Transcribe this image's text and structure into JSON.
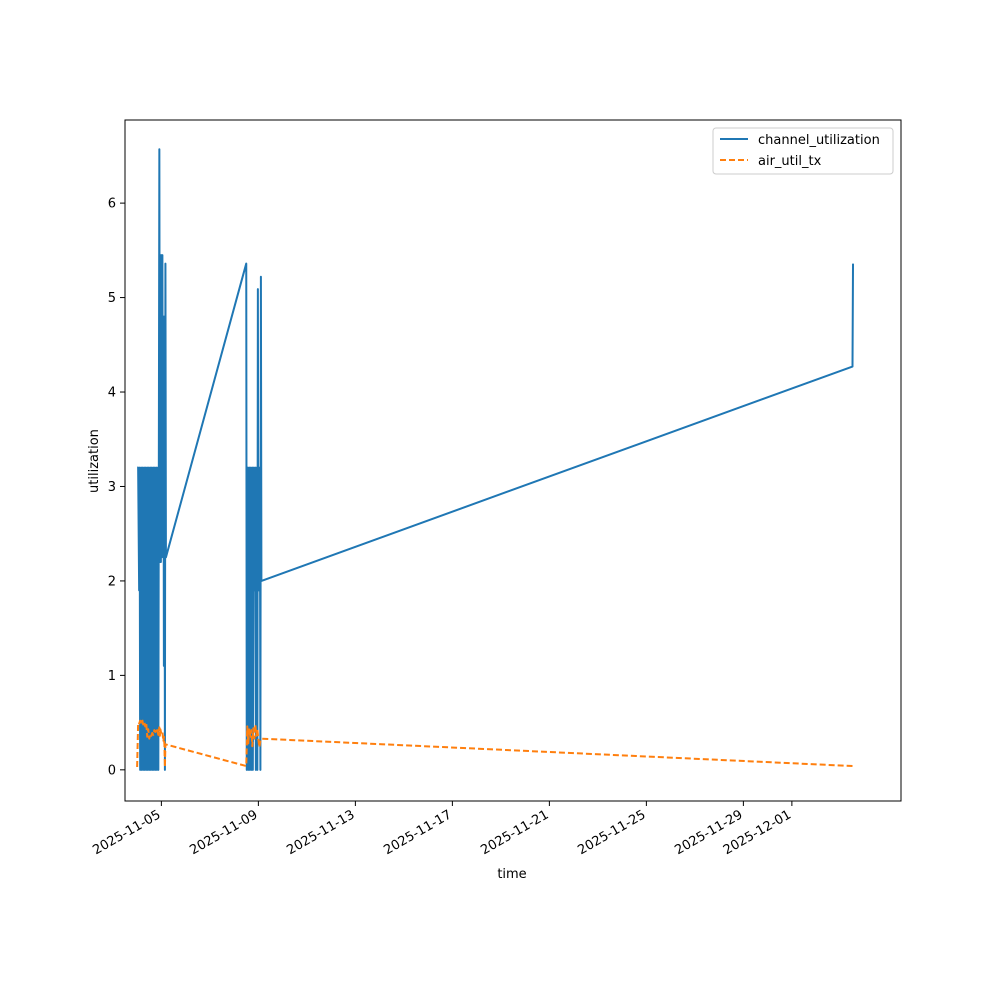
{
  "chart_data": {
    "type": "line",
    "title": "",
    "xlabel": "time",
    "ylabel": "utilization",
    "x_ticks": [
      "2025-11-05",
      "2025-11-09",
      "2025-11-13",
      "2025-11-17",
      "2025-11-21",
      "2025-11-25",
      "2025-11-29",
      "2025-12-01"
    ],
    "y_ticks": [
      0,
      1,
      2,
      3,
      4,
      5,
      6
    ],
    "xlim": [
      "2025-11-03T12:00",
      "2025-12-05T12:00"
    ],
    "ylim": [
      -0.33,
      6.88
    ],
    "legend": {
      "location": "top-right"
    },
    "grid": false,
    "series": [
      {
        "name": "channel_utilization",
        "color": "#1f77b4",
        "dash": "solid",
        "points": [
          [
            "2025-11-04T00:00",
            3.2
          ],
          [
            "2025-11-04T01:00",
            3.2
          ],
          [
            "2025-11-04T02:00",
            1.9
          ],
          [
            "2025-11-04T02:30",
            3.2
          ],
          [
            "2025-11-04T03:00",
            0
          ],
          [
            "2025-11-04T04:00",
            3.2
          ],
          [
            "2025-11-04T04:30",
            0
          ],
          [
            "2025-11-04T05:30",
            3.2
          ],
          [
            "2025-11-04T06:00",
            0
          ],
          [
            "2025-11-04T07:00",
            3.2
          ],
          [
            "2025-11-04T07:30",
            0
          ],
          [
            "2025-11-04T08:30",
            3.2
          ],
          [
            "2025-11-04T09:00",
            0
          ],
          [
            "2025-11-04T10:00",
            3.2
          ],
          [
            "2025-11-04T10:30",
            0
          ],
          [
            "2025-11-04T11:30",
            3.2
          ],
          [
            "2025-11-04T12:00",
            0
          ],
          [
            "2025-11-04T13:00",
            3.2
          ],
          [
            "2025-11-04T13:30",
            0
          ],
          [
            "2025-11-04T14:30",
            3.2
          ],
          [
            "2025-11-04T15:00",
            0
          ],
          [
            "2025-11-04T16:00",
            3.2
          ],
          [
            "2025-11-04T16:30",
            0
          ],
          [
            "2025-11-04T17:30",
            3.2
          ],
          [
            "2025-11-04T18:00",
            0
          ],
          [
            "2025-11-04T19:00",
            3.2
          ],
          [
            "2025-11-04T19:30",
            0
          ],
          [
            "2025-11-04T20:30",
            3.2
          ],
          [
            "2025-11-04T21:00",
            0
          ],
          [
            "2025-11-04T22:00",
            6.57
          ],
          [
            "2025-11-04T22:30",
            2.2
          ],
          [
            "2025-11-04T23:00",
            5.45
          ],
          [
            "2025-11-04T23:30",
            2.2
          ],
          [
            "2025-11-05T00:00",
            5.45
          ],
          [
            "2025-11-05T00:30",
            2.25
          ],
          [
            "2025-11-05T01:00",
            5.45
          ],
          [
            "2025-11-05T01:30",
            2.3
          ],
          [
            "2025-11-05T02:00",
            4.8
          ],
          [
            "2025-11-05T02:30",
            1.1
          ],
          [
            "2025-11-05T03:00",
            4.8
          ],
          [
            "2025-11-05T03:30",
            0
          ],
          [
            "2025-11-05T04:00",
            5.36
          ],
          [
            "2025-11-05T04:30",
            2.25
          ],
          [
            "2025-11-08T12:00",
            5.36
          ],
          [
            "2025-11-08T12:30",
            0
          ],
          [
            "2025-11-08T13:30",
            3.2
          ],
          [
            "2025-11-08T14:00",
            0
          ],
          [
            "2025-11-08T15:00",
            3.2
          ],
          [
            "2025-11-08T15:30",
            0
          ],
          [
            "2025-11-08T16:30",
            3.2
          ],
          [
            "2025-11-08T17:00",
            0
          ],
          [
            "2025-11-08T18:00",
            3.2
          ],
          [
            "2025-11-08T18:30",
            0
          ],
          [
            "2025-11-08T19:30",
            3.2
          ],
          [
            "2025-11-08T20:00",
            1.9
          ],
          [
            "2025-11-08T21:00",
            3.2
          ],
          [
            "2025-11-08T21:30",
            0
          ],
          [
            "2025-11-08T22:30",
            3.2
          ],
          [
            "2025-11-08T23:00",
            0
          ],
          [
            "2025-11-08T23:30",
            5.09
          ],
          [
            "2025-11-09T00:00",
            1.9
          ],
          [
            "2025-11-09T00:30",
            3.2
          ],
          [
            "2025-11-09T01:00",
            2.1
          ],
          [
            "2025-11-09T01:30",
            3.2
          ],
          [
            "2025-11-09T02:00",
            0
          ],
          [
            "2025-11-09T02:30",
            5.22
          ],
          [
            "2025-11-09T03:00",
            2.0
          ],
          [
            "2025-12-03T12:00",
            4.27
          ],
          [
            "2025-12-03T12:30",
            5.36
          ]
        ]
      },
      {
        "name": "air_util_tx",
        "color": "#ff7f0e",
        "dash": "dashed",
        "points": [
          [
            "2025-11-04T00:00",
            0.03
          ],
          [
            "2025-11-04T01:00",
            0.5
          ],
          [
            "2025-11-04T02:00",
            0.49
          ],
          [
            "2025-11-04T03:00",
            0.52
          ],
          [
            "2025-11-04T04:00",
            0.5
          ],
          [
            "2025-11-04T05:00",
            0.53
          ],
          [
            "2025-11-04T06:00",
            0.48
          ],
          [
            "2025-11-04T07:00",
            0.51
          ],
          [
            "2025-11-04T08:00",
            0.46
          ],
          [
            "2025-11-04T09:00",
            0.5
          ],
          [
            "2025-11-04T10:00",
            0.35
          ],
          [
            "2025-11-04T11:00",
            0.43
          ],
          [
            "2025-11-04T12:00",
            0.33
          ],
          [
            "2025-11-04T13:00",
            0.38
          ],
          [
            "2025-11-04T14:00",
            0.36
          ],
          [
            "2025-11-04T15:00",
            0.39
          ],
          [
            "2025-11-04T16:00",
            0.37
          ],
          [
            "2025-11-04T17:00",
            0.42
          ],
          [
            "2025-11-04T18:00",
            0.4
          ],
          [
            "2025-11-04T19:00",
            0.44
          ],
          [
            "2025-11-04T20:00",
            0.41
          ],
          [
            "2025-11-04T21:00",
            0.37
          ],
          [
            "2025-11-04T22:00",
            0.45
          ],
          [
            "2025-11-04T22:30",
            0.36
          ],
          [
            "2025-11-04T23:00",
            0.43
          ],
          [
            "2025-11-05T00:00",
            0.38
          ],
          [
            "2025-11-05T01:00",
            0.4
          ],
          [
            "2025-11-05T02:00",
            0.3
          ],
          [
            "2025-11-05T02:30",
            0.35
          ],
          [
            "2025-11-05T03:00",
            0.27
          ],
          [
            "2025-11-05T03:30",
            0.03
          ],
          [
            "2025-11-05T04:00",
            0.27
          ],
          [
            "2025-11-08T12:00",
            0.04
          ],
          [
            "2025-11-08T13:00",
            0.46
          ],
          [
            "2025-11-08T14:00",
            0.28
          ],
          [
            "2025-11-08T15:00",
            0.44
          ],
          [
            "2025-11-08T16:00",
            0.35
          ],
          [
            "2025-11-08T17:00",
            0.42
          ],
          [
            "2025-11-08T18:00",
            0.25
          ],
          [
            "2025-11-08T19:00",
            0.44
          ],
          [
            "2025-11-08T20:00",
            0.33
          ],
          [
            "2025-11-08T21:00",
            0.48
          ],
          [
            "2025-11-08T22:00",
            0.36
          ],
          [
            "2025-11-08T23:00",
            0.43
          ],
          [
            "2025-11-09T00:00",
            0.32
          ],
          [
            "2025-11-09T01:00",
            0.24
          ],
          [
            "2025-11-09T02:00",
            0.31
          ],
          [
            "2025-11-09T03:00",
            0.33
          ],
          [
            "2025-12-03T12:00",
            0.04
          ]
        ]
      }
    ]
  }
}
